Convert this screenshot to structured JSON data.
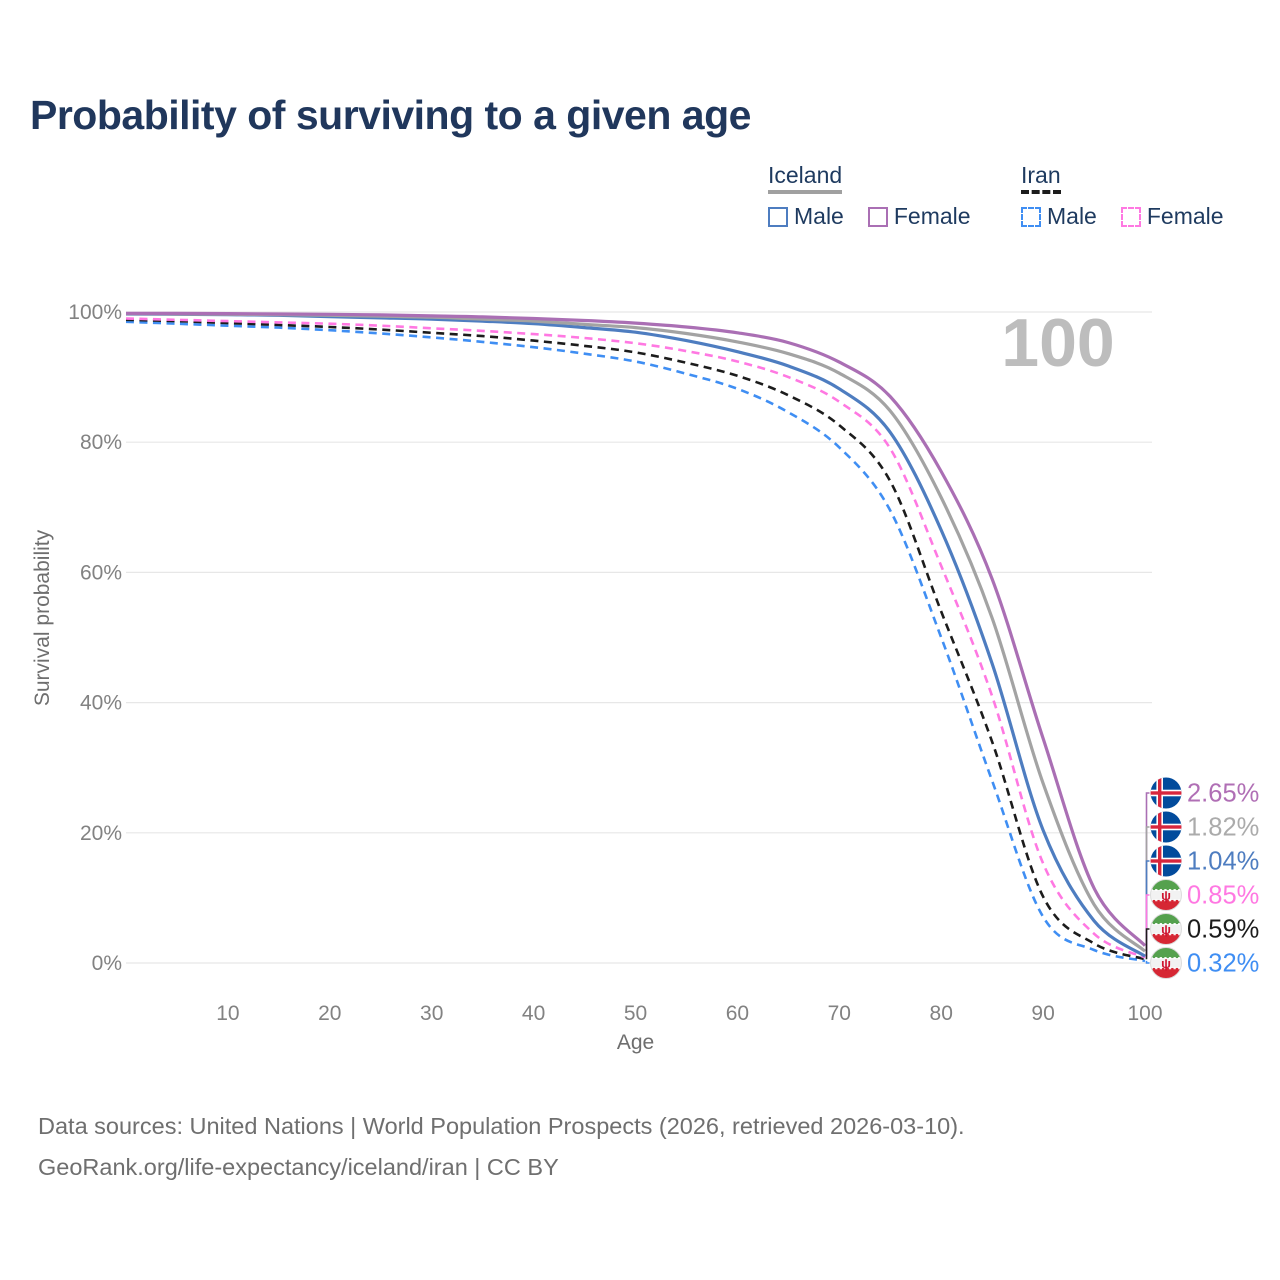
{
  "title": "Probability of surviving to a given age",
  "watermark": "100",
  "legend": {
    "groups": [
      {
        "label": "Iceland",
        "underline_style": "solid",
        "underline_color": "#a0a0a0",
        "items": [
          {
            "label": "Male",
            "color": "#4e7dc0",
            "dashed": false
          },
          {
            "label": "Female",
            "color": "#aa6fb4",
            "dashed": false
          }
        ]
      },
      {
        "label": "Iran",
        "underline_style": "dashed",
        "underline_color": "#1c1c1c",
        "items": [
          {
            "label": "Male",
            "color": "#3f8ef3",
            "dashed": true
          },
          {
            "label": "Female",
            "color": "#ff78e2",
            "dashed": true
          }
        ]
      }
    ]
  },
  "chart_data": {
    "type": "line",
    "title": "Probability of surviving to a given age",
    "xlabel": "Age",
    "ylabel": "Survival probability",
    "xlim": [
      0,
      100
    ],
    "ylim": [
      0,
      100
    ],
    "grid": true,
    "x_ticks": [
      10,
      20,
      30,
      40,
      50,
      60,
      70,
      80,
      90,
      100
    ],
    "y_ticks": [
      0,
      20,
      40,
      60,
      80,
      100
    ],
    "y_tick_labels": [
      "0%",
      "20%",
      "40%",
      "60%",
      "80%",
      "100%"
    ],
    "x": [
      0,
      5,
      10,
      15,
      20,
      25,
      30,
      35,
      40,
      45,
      50,
      55,
      60,
      65,
      70,
      75,
      80,
      85,
      90,
      95,
      100
    ],
    "series": [
      {
        "id": "iran-male",
        "name": "Iran Male",
        "country": "Iran",
        "sex": "Male",
        "style": "dashed",
        "color": "#3f8ef3",
        "flag": "iran",
        "end_label": "0.32%",
        "end_label_color": "#3f8ef3",
        "values": [
          98.5,
          98.2,
          97.9,
          97.6,
          97.2,
          96.7,
          96.1,
          95.4,
          94.6,
          93.6,
          92.4,
          90.5,
          88.2,
          84.6,
          79.2,
          69.5,
          50.0,
          28.0,
          7.1,
          2.0,
          0.32
        ]
      },
      {
        "id": "iran-both",
        "name": "Iran Both sexes",
        "country": "Iran",
        "sex": "Both",
        "style": "dashed",
        "color": "#1c1c1c",
        "flag": "iran",
        "end_label": "0.59%",
        "end_label_color": "#1c1c1c",
        "values": [
          98.8,
          98.6,
          98.3,
          98.0,
          97.7,
          97.3,
          96.8,
          96.3,
          95.6,
          94.8,
          93.8,
          92.2,
          90.2,
          87.2,
          82.6,
          74.0,
          54.0,
          34.0,
          10.2,
          3.0,
          0.59
        ]
      },
      {
        "id": "iran-female",
        "name": "Iran Female",
        "country": "Iran",
        "sex": "Female",
        "style": "dashed",
        "color": "#ff78e2",
        "flag": "iran",
        "end_label": "0.85%",
        "end_label_color": "#ff78e2",
        "values": [
          99.0,
          98.8,
          98.6,
          98.4,
          98.2,
          97.9,
          97.5,
          97.1,
          96.6,
          96.0,
          95.2,
          94.0,
          92.4,
          90.0,
          86.2,
          79.0,
          61.0,
          41.0,
          15.3,
          4.5,
          0.85
        ]
      },
      {
        "id": "iceland-male",
        "name": "Iceland Male",
        "country": "Iceland",
        "sex": "Male",
        "style": "solid",
        "color": "#4e7dc0",
        "flag": "iceland",
        "end_label": "1.04%",
        "end_label_color": "#4e7dc0",
        "values": [
          99.7,
          99.65,
          99.6,
          99.5,
          99.3,
          99.1,
          98.9,
          98.6,
          98.2,
          97.6,
          96.9,
          95.6,
          93.9,
          91.7,
          88.2,
          81.5,
          66.5,
          46.0,
          20.4,
          6.5,
          1.04
        ]
      },
      {
        "id": "iceland-both",
        "name": "Iceland Both sexes",
        "country": "Iceland",
        "sex": "Both",
        "style": "solid",
        "color": "#a3a3a3",
        "flag": "iceland",
        "end_label": "1.82%",
        "end_label_color": "#ababab",
        "values": [
          99.75,
          99.7,
          99.65,
          99.6,
          99.5,
          99.35,
          99.2,
          98.9,
          98.6,
          98.1,
          97.6,
          96.7,
          95.4,
          93.6,
          90.6,
          84.8,
          71.5,
          53.0,
          27.6,
          9.0,
          1.82
        ]
      },
      {
        "id": "iceland-female",
        "name": "Iceland Female",
        "country": "Iceland",
        "sex": "Female",
        "style": "solid",
        "color": "#aa6fb4",
        "flag": "iceland",
        "end_label": "2.65%",
        "end_label_color": "#b06fb5",
        "values": [
          99.8,
          99.78,
          99.75,
          99.7,
          99.65,
          99.55,
          99.4,
          99.25,
          99.0,
          98.7,
          98.3,
          97.7,
          96.8,
          95.3,
          92.3,
          87.0,
          75.5,
          59.0,
          34.5,
          11.5,
          2.65
        ]
      }
    ],
    "colors": {
      "grid": "#e7e7e7",
      "tick_text": "#828282",
      "axis_title": "#6e6e6e",
      "watermark": "#bdbdbd"
    }
  },
  "footer": {
    "line1": "Data sources: United Nations | World Population Prospects (2026, retrieved 2026-03-10).",
    "line2": "GeoRank.org/life-expectancy/iceland/iran | CC BY"
  }
}
